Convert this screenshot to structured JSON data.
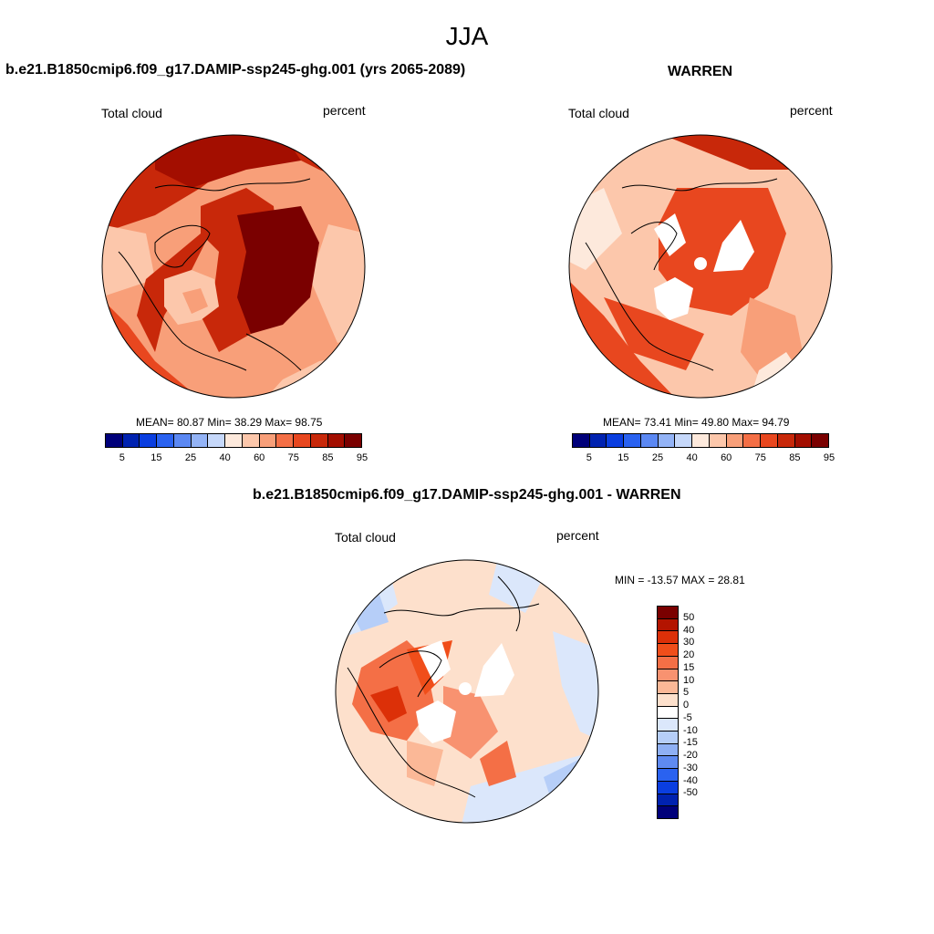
{
  "page_title": "JJA",
  "panels": {
    "model": {
      "title": "b.e21.B1850cmip6.f09_g17.DAMIP-ssp245-ghg.001 (yrs 2065-2089)",
      "left_label": "Total cloud",
      "right_label": "percent",
      "stats": "MEAN=  80.87  Min=  38.29  Max=  98.75"
    },
    "obs": {
      "title": "WARREN",
      "left_label": "Total cloud",
      "right_label": "percent",
      "stats": "MEAN=  73.41  Min=  49.80  Max=  94.79"
    },
    "diff": {
      "title": "b.e21.B1850cmip6.f09_g17.DAMIP-ssp245-ghg.001 - WARREN",
      "left_label": "Total cloud",
      "right_label": "percent",
      "stats": "MIN = -13.57 MAX =  28.81"
    }
  },
  "colorbar_abs": {
    "colors": [
      "#00007a",
      "#0022b0",
      "#0a3ee0",
      "#2a62f0",
      "#5b88f3",
      "#93b3f6",
      "#c6d8fa",
      "#fde9dc",
      "#fcc7ab",
      "#f89f79",
      "#f46f46",
      "#e8471f",
      "#c8280a",
      "#a30e00",
      "#7a0000"
    ],
    "tick_labels": [
      "5",
      "15",
      "25",
      "40",
      "60",
      "75",
      "85",
      "95"
    ]
  },
  "colorbar_diff": {
    "colors": [
      "#7a0000",
      "#b31400",
      "#dc3008",
      "#f04e1a",
      "#f46f46",
      "#f89270",
      "#fbb897",
      "#fde0cc",
      "#ffffff",
      "#dbe7fb",
      "#b6cef8",
      "#8fb0f4",
      "#5f8af0",
      "#2a62f0",
      "#0a3ee0",
      "#0022b0",
      "#00007a"
    ],
    "tick_labels": [
      "50",
      "40",
      "30",
      "20",
      "15",
      "10",
      "5",
      "0",
      "-5",
      "-10",
      "-15",
      "-20",
      "-30",
      "-40",
      "-50"
    ]
  }
}
